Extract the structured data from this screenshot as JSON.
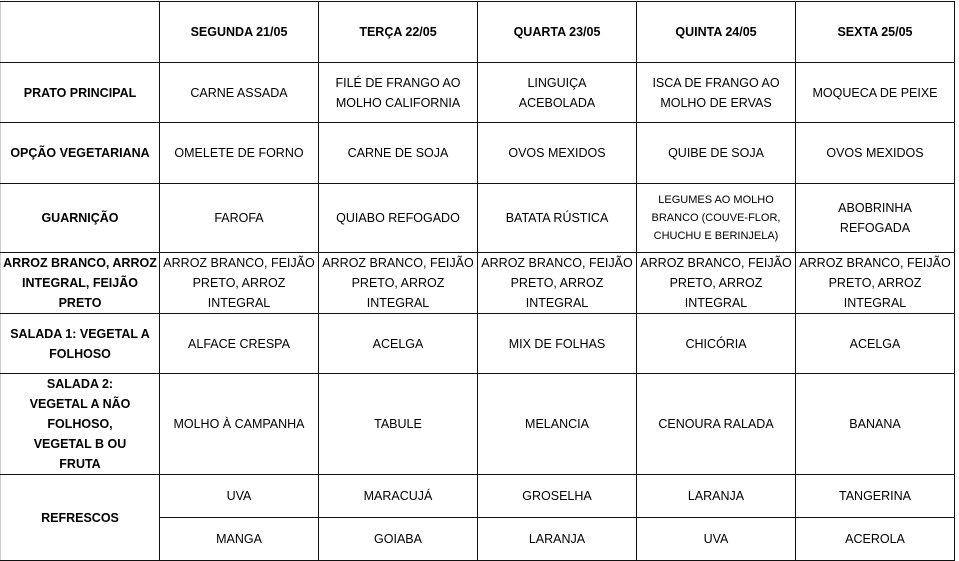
{
  "header": [
    "",
    "SEGUNDA   21/05",
    "TERÇA 22/05",
    "QUARTA 23/05",
    "QUINTA 24/05",
    "SEXTA 25/05"
  ],
  "rows": [
    {
      "label": "PRATO PRINCIPAL",
      "cells": [
        "CARNE ASSADA",
        "FILÉ DE FRANGO AO MOLHO CALIFORNIA",
        "LINGUIÇA ACEBOLADA",
        "ISCA DE FRANGO AO MOLHO DE ERVAS",
        "MOQUECA DE PEIXE"
      ]
    },
    {
      "label": "OPÇÃO VEGETARIANA",
      "cells": [
        "OMELETE DE FORNO",
        "CARNE DE SOJA",
        "OVOS MEXIDOS",
        "QUIBE DE SOJA",
        "OVOS MEXIDOS"
      ]
    },
    {
      "label": "GUARNIÇÃO",
      "cells": [
        "FAROFA",
        "QUIABO REFOGADO",
        "BATATA RÚSTICA",
        "LEGUMES AO MOLHO BRANCO (COUVE-FLOR, CHUCHU E BERINJELA)",
        "ABOBRINHA REFOGADA"
      ]
    },
    {
      "label": "ARROZ BRANCO, ARROZ INTEGRAL, FEIJÃO PRETO",
      "cells": [
        "ARROZ BRANCO, FEIJÃO PRETO, ARROZ INTEGRAL",
        "ARROZ BRANCO, FEIJÃO PRETO, ARROZ INTEGRAL",
        "ARROZ BRANCO, FEIJÃO PRETO, ARROZ INTEGRAL",
        "ARROZ BRANCO, FEIJÃO PRETO, ARROZ INTEGRAL",
        "ARROZ BRANCO, FEIJÃO PRETO, ARROZ INTEGRAL"
      ]
    },
    {
      "label": "SALADA 1: VEGETAL A FOLHOSO",
      "cells": [
        "ALFACE CRESPA",
        "ACELGA",
        "MIX DE FOLHAS",
        "CHICÓRIA",
        "ACELGA"
      ]
    },
    {
      "label": "SALADA 2: VEGETAL A NÃO FOLHOSO, VEGETAL B OU FRUTA",
      "cells": [
        "MOLHO À CAMPANHA",
        "TABULE",
        "MELANCIA",
        "CENOURA RALADA",
        "BANANA"
      ]
    }
  ],
  "refrescos": {
    "label": "REFRESCOS",
    "row1": [
      "UVA",
      "MARACUJÁ",
      "GROSELHA",
      "LARANJA",
      "TANGERINA"
    ],
    "row2": [
      "MANGA",
      "GOIABA",
      "LARANJA",
      "UVA",
      "ACEROLA"
    ]
  }
}
